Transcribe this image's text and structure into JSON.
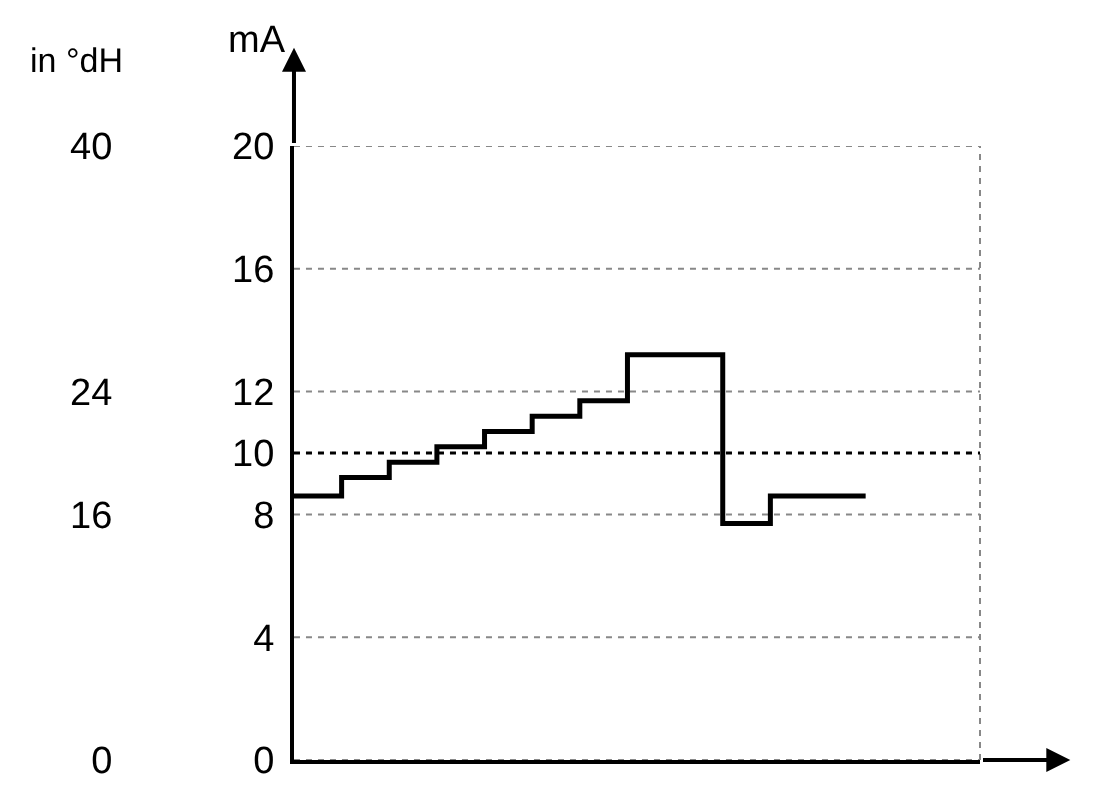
{
  "chart_data": {
    "type": "step",
    "ylabel": "mA",
    "y2label": "in °dH",
    "categories": [
      null,
      null,
      null,
      null,
      null,
      null,
      null,
      null,
      null,
      null,
      null,
      null,
      null
    ],
    "series": [
      {
        "color": "#000000",
        "values": [
          8.6,
          9.2,
          9.7,
          10.2,
          10.7,
          11.2,
          11.7,
          13.2,
          13.2,
          7.7,
          8.6,
          8.6,
          8.6
        ]
      }
    ],
    "ylim": [
      0,
      20
    ],
    "yticks": [
      0,
      4,
      8,
      10,
      12,
      16,
      20
    ],
    "y2lim": [
      0,
      40
    ],
    "y2ticks": [
      0,
      16,
      24,
      40
    ],
    "ref_lines": [
      {
        "axis": "y",
        "value": 10,
        "color": "#000000",
        "line_style": "dotted"
      }
    ],
    "grid": "y",
    "line_style": "solid",
    "marker": "none"
  }
}
